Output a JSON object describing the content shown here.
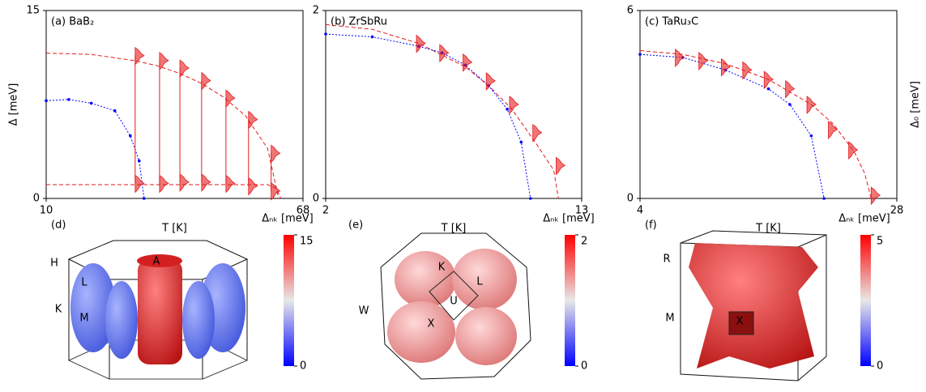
{
  "chart_data": [
    {
      "type": "line",
      "label": "(a) BaB₂",
      "xlabel": "T [K]",
      "ylabel": "Δ [meV]",
      "xlim": [
        10,
        68
      ],
      "xticks": [
        10,
        68
      ],
      "ylim": [
        0,
        15
      ],
      "yticks": [
        0,
        15
      ],
      "connect_distributions": true,
      "series": [
        {
          "color": "#e41a1c",
          "style": "dashed",
          "x": [
            10,
            20,
            30,
            35,
            40,
            45,
            50,
            55,
            60,
            62.5
          ],
          "values": [
            11.6,
            11.5,
            11.0,
            10.6,
            10.0,
            9.2,
            8.1,
            6.6,
            4.0,
            0
          ]
        },
        {
          "color": "#e41a1c",
          "style": "dashed",
          "x": [
            10,
            30,
            50,
            60,
            62,
            63
          ],
          "values": [
            1.1,
            1.1,
            1.1,
            1.1,
            0.8,
            0
          ]
        },
        {
          "color": "#0000ff",
          "style": "dotted",
          "markers": true,
          "x": [
            10,
            15.1,
            20.2,
            25.5,
            29,
            31,
            32.1
          ],
          "values": [
            7.8,
            7.9,
            7.6,
            7.0,
            5.0,
            3.0,
            0
          ]
        },
        {
          "color": "#e41a1c",
          "style": "distribution",
          "x": [
            30.1,
            35.6,
            40.2,
            45.1,
            50.6,
            55.7,
            60.8
          ],
          "values": [
            11.4,
            11.0,
            10.4,
            9.4,
            8.0,
            6.3,
            3.6
          ]
        },
        {
          "color": "#e41a1c",
          "style": "distribution",
          "x": [
            30.1,
            35.6,
            40.2,
            45.1,
            50.6,
            55.7,
            60.8
          ],
          "values": [
            1.2,
            1.2,
            1.3,
            1.3,
            1.2,
            1.0,
            0.6
          ]
        }
      ]
    },
    {
      "type": "line",
      "label": "(b) ZrSbRu",
      "xlabel": "T [K]",
      "xlim": [
        2,
        13
      ],
      "xticks": [
        2,
        13
      ],
      "ylim": [
        0,
        2
      ],
      "yticks": [
        0,
        2
      ],
      "series": [
        {
          "color": "#e41a1c",
          "style": "dashed",
          "x": [
            2,
            4,
            6,
            8,
            9,
            10,
            11,
            11.8,
            12.0
          ],
          "values": [
            1.85,
            1.8,
            1.65,
            1.4,
            1.2,
            0.95,
            0.6,
            0.3,
            0
          ]
        },
        {
          "color": "#0000ff",
          "style": "dotted",
          "markers": true,
          "x": [
            2,
            4,
            6,
            7,
            8,
            9,
            9.8,
            10.4,
            10.8
          ],
          "values": [
            1.75,
            1.72,
            1.62,
            1.55,
            1.42,
            1.2,
            0.95,
            0.6,
            0
          ]
        },
        {
          "color": "#e41a1c",
          "style": "distribution",
          "x": [
            5.9,
            6.9,
            7.9,
            8.9,
            9.9,
            10.9,
            11.9
          ],
          "values": [
            1.65,
            1.55,
            1.45,
            1.25,
            1.0,
            0.7,
            0.35
          ]
        }
      ]
    },
    {
      "type": "line",
      "label": "(c) TaRu₃C",
      "xlabel": "T [K]",
      "y2label": "Δ₀ [meV]",
      "xlim": [
        4,
        28
      ],
      "xticks": [
        4,
        28
      ],
      "ylim": [
        0,
        6
      ],
      "yticks": [
        0,
        6
      ],
      "series": [
        {
          "color": "#e41a1c",
          "style": "dashed",
          "x": [
            4,
            8,
            12,
            16,
            20,
            22,
            24,
            25,
            25.6
          ],
          "values": [
            4.72,
            4.6,
            4.3,
            3.8,
            3.0,
            2.4,
            1.5,
            0.8,
            0
          ]
        },
        {
          "color": "#0000ff",
          "style": "dotted",
          "markers": true,
          "x": [
            4,
            8,
            12,
            16,
            18,
            20,
            21.2
          ],
          "values": [
            4.6,
            4.5,
            4.1,
            3.5,
            3.0,
            2.0,
            0
          ]
        },
        {
          "color": "#e41a1c",
          "style": "distribution",
          "x": [
            7.3,
            9.5,
            11.6,
            13.6,
            15.6,
            17.6,
            19.6,
            21.6,
            23.5,
            25.6
          ],
          "values": [
            4.5,
            4.4,
            4.2,
            4.1,
            3.8,
            3.5,
            3.0,
            2.2,
            1.55,
            0.1
          ]
        }
      ]
    }
  ],
  "fermi_surfaces": [
    {
      "label": "(d)",
      "colorbar_title": "Δₙₖ [meV]",
      "colorbar_lim": [
        0,
        15
      ],
      "colorbar_ticks": [
        0,
        15
      ],
      "points": [
        "H",
        "L",
        "K",
        "M",
        "A"
      ]
    },
    {
      "label": "(e)",
      "colorbar_title": "Δₙₖ [meV]",
      "colorbar_lim": [
        0,
        2
      ],
      "colorbar_ticks": [
        0,
        2
      ],
      "points": [
        "K",
        "L",
        "U",
        "W",
        "X"
      ]
    },
    {
      "label": "(f)",
      "colorbar_title": "Δₙₖ [meV]",
      "colorbar_lim": [
        0,
        5
      ],
      "colorbar_ticks": [
        0,
        5
      ],
      "points": [
        "R",
        "M",
        "X"
      ]
    }
  ]
}
